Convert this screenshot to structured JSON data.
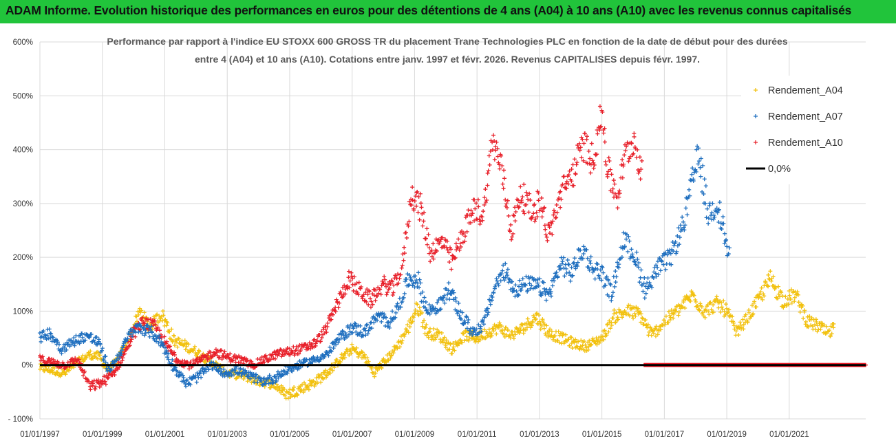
{
  "banner": {
    "text": "ADAM Informe. Evolution historique des performances en euros pour des détentions de 4 ans (A04) à 10 ans (A10) avec les revenus connus capitalisés"
  },
  "chart_data": {
    "type": "scatter",
    "title_line1": "Performance par rapport à l'indice EU STOXX 600 GROSS TR  du placement Trane Technologies PLC en fonction de la date de début pour des durées",
    "title_line2": "entre 4 (A04) et 10 ans (A10).  Cotations entre janv. 1997 et févr. 2026. Revenus CAPITALISES depuis févr. 1997.",
    "xlabel": "",
    "ylabel": "",
    "xlim": [
      1997.0,
      2023.45
    ],
    "ylim": [
      -100,
      600
    ],
    "y_ticks": [
      -100,
      0,
      100,
      200,
      300,
      400,
      500,
      600
    ],
    "y_tick_labels": [
      "- 100%",
      "0%",
      "100%",
      "200%",
      "300%",
      "400%",
      "500%",
      "600%"
    ],
    "x_ticks": [
      1997,
      1999,
      2001,
      2003,
      2005,
      2007,
      2009,
      2011,
      2013,
      2015,
      2017,
      2019,
      2021
    ],
    "x_tick_labels": [
      "01/01/1997",
      "01/01/1999",
      "01/01/2001",
      "01/01/2003",
      "01/01/2005",
      "01/01/2007",
      "01/01/2009",
      "01/01/2011",
      "01/01/2013",
      "01/01/2015",
      "01/01/2017",
      "01/01/2019",
      "01/01/2021"
    ],
    "grid": "vertical and horizontal",
    "legend_position": "top-right",
    "series": [
      {
        "name": "Rendement_A04",
        "color": "#f2c10f",
        "marker": "plus",
        "points": [
          [
            1997.0,
            -5
          ],
          [
            1997.4,
            -10
          ],
          [
            1997.8,
            -15
          ],
          [
            1998.2,
            5
          ],
          [
            1998.6,
            20
          ],
          [
            1998.9,
            15
          ],
          [
            1999.2,
            -10
          ],
          [
            1999.5,
            10
          ],
          [
            1999.9,
            55
          ],
          [
            2000.2,
            100
          ],
          [
            2000.5,
            70
          ],
          [
            2000.9,
            95
          ],
          [
            2001.3,
            45
          ],
          [
            2001.7,
            35
          ],
          [
            2002.0,
            25
          ],
          [
            2002.5,
            5
          ],
          [
            2003.0,
            -15
          ],
          [
            2003.5,
            -20
          ],
          [
            2004.0,
            -30
          ],
          [
            2004.5,
            -35
          ],
          [
            2004.9,
            -55
          ],
          [
            2005.3,
            -45
          ],
          [
            2005.7,
            -35
          ],
          [
            2006.2,
            -15
          ],
          [
            2006.6,
            10
          ],
          [
            2007.0,
            30
          ],
          [
            2007.4,
            15
          ],
          [
            2007.7,
            -15
          ],
          [
            2008.1,
            10
          ],
          [
            2008.5,
            40
          ],
          [
            2008.8,
            70
          ],
          [
            2009.1,
            110
          ],
          [
            2009.4,
            60
          ],
          [
            2009.8,
            55
          ],
          [
            2010.2,
            30
          ],
          [
            2010.6,
            55
          ],
          [
            2011.0,
            50
          ],
          [
            2011.3,
            60
          ],
          [
            2011.7,
            70
          ],
          [
            2012.1,
            55
          ],
          [
            2012.5,
            70
          ],
          [
            2012.9,
            90
          ],
          [
            2013.3,
            60
          ],
          [
            2013.7,
            50
          ],
          [
            2014.1,
            40
          ],
          [
            2014.5,
            35
          ],
          [
            2015.0,
            50
          ],
          [
            2015.4,
            90
          ],
          [
            2015.8,
            100
          ],
          [
            2016.2,
            95
          ],
          [
            2016.6,
            55
          ],
          [
            2017.0,
            80
          ],
          [
            2017.5,
            105
          ],
          [
            2017.9,
            130
          ],
          [
            2018.3,
            100
          ],
          [
            2018.7,
            115
          ],
          [
            2019.0,
            100
          ],
          [
            2019.3,
            60
          ],
          [
            2019.7,
            90
          ],
          [
            2020.1,
            130
          ],
          [
            2020.4,
            160
          ],
          [
            2020.8,
            120
          ],
          [
            2021.2,
            130
          ],
          [
            2021.6,
            80
          ],
          [
            2022.0,
            70
          ],
          [
            2022.3,
            55
          ],
          [
            2022.45,
            80
          ]
        ]
      },
      {
        "name": "Rendement_A07",
        "color": "#1f6fbf",
        "marker": "plus",
        "points": [
          [
            1997.0,
            50
          ],
          [
            1997.3,
            60
          ],
          [
            1997.7,
            30
          ],
          [
            1998.1,
            45
          ],
          [
            1998.5,
            55
          ],
          [
            1998.9,
            40
          ],
          [
            1999.2,
            -10
          ],
          [
            1999.5,
            15
          ],
          [
            1999.9,
            60
          ],
          [
            2000.2,
            70
          ],
          [
            2000.6,
            60
          ],
          [
            2000.9,
            40
          ],
          [
            2001.3,
            -5
          ],
          [
            2001.7,
            -35
          ],
          [
            2002.1,
            -20
          ],
          [
            2002.5,
            0
          ],
          [
            2002.9,
            -15
          ],
          [
            2003.3,
            -10
          ],
          [
            2003.7,
            -20
          ],
          [
            2004.1,
            -30
          ],
          [
            2004.5,
            -25
          ],
          [
            2004.9,
            -10
          ],
          [
            2005.3,
            0
          ],
          [
            2005.8,
            10
          ],
          [
            2006.2,
            20
          ],
          [
            2006.6,
            50
          ],
          [
            2007.0,
            70
          ],
          [
            2007.4,
            60
          ],
          [
            2007.8,
            90
          ],
          [
            2008.2,
            80
          ],
          [
            2008.5,
            110
          ],
          [
            2008.8,
            160
          ],
          [
            2009.1,
            160
          ],
          [
            2009.4,
            100
          ],
          [
            2009.8,
            110
          ],
          [
            2010.1,
            140
          ],
          [
            2010.5,
            90
          ],
          [
            2010.9,
            60
          ],
          [
            2011.2,
            75
          ],
          [
            2011.6,
            150
          ],
          [
            2011.9,
            175
          ],
          [
            2012.2,
            140
          ],
          [
            2012.6,
            150
          ],
          [
            2013.0,
            145
          ],
          [
            2013.3,
            130
          ],
          [
            2013.7,
            190
          ],
          [
            2014.0,
            170
          ],
          [
            2014.4,
            215
          ],
          [
            2014.7,
            180
          ],
          [
            2015.0,
            170
          ],
          [
            2015.3,
            130
          ],
          [
            2015.7,
            230
          ],
          [
            2016.0,
            210
          ],
          [
            2016.4,
            140
          ],
          [
            2016.8,
            180
          ],
          [
            2017.2,
            200
          ],
          [
            2017.6,
            260
          ],
          [
            2017.9,
            340
          ],
          [
            2018.1,
            390
          ],
          [
            2018.4,
            280
          ],
          [
            2018.7,
            300
          ],
          [
            2018.9,
            250
          ],
          [
            2019.1,
            190
          ]
        ]
      },
      {
        "name": "Rendement_A10",
        "color": "#e8202a",
        "marker": "plus",
        "points": [
          [
            1997.0,
            10
          ],
          [
            1997.4,
            5
          ],
          [
            1997.8,
            0
          ],
          [
            1998.2,
            10
          ],
          [
            1998.6,
            -40
          ],
          [
            1998.9,
            -35
          ],
          [
            1999.3,
            -20
          ],
          [
            1999.7,
            20
          ],
          [
            2000.0,
            60
          ],
          [
            2000.3,
            80
          ],
          [
            2000.7,
            70
          ],
          [
            2001.0,
            40
          ],
          [
            2001.4,
            10
          ],
          [
            2001.8,
            0
          ],
          [
            2002.2,
            10
          ],
          [
            2002.6,
            25
          ],
          [
            2003.0,
            15
          ],
          [
            2003.4,
            10
          ],
          [
            2003.8,
            0
          ],
          [
            2004.2,
            10
          ],
          [
            2004.6,
            20
          ],
          [
            2005.0,
            25
          ],
          [
            2005.4,
            30
          ],
          [
            2005.8,
            40
          ],
          [
            2006.1,
            60
          ],
          [
            2006.5,
            110
          ],
          [
            2006.9,
            160
          ],
          [
            2007.2,
            140
          ],
          [
            2007.6,
            120
          ],
          [
            2008.0,
            150
          ],
          [
            2008.3,
            140
          ],
          [
            2008.6,
            180
          ],
          [
            2008.9,
            320
          ],
          [
            2009.2,
            290
          ],
          [
            2009.5,
            210
          ],
          [
            2009.9,
            230
          ],
          [
            2010.2,
            190
          ],
          [
            2010.6,
            250
          ],
          [
            2010.9,
            290
          ],
          [
            2011.2,
            280
          ],
          [
            2011.5,
            420
          ],
          [
            2011.8,
            360
          ],
          [
            2012.1,
            250
          ],
          [
            2012.4,
            320
          ],
          [
            2012.8,
            280
          ],
          [
            2013.0,
            310
          ],
          [
            2013.3,
            240
          ],
          [
            2013.7,
            320
          ],
          [
            2014.1,
            360
          ],
          [
            2014.4,
            410
          ],
          [
            2014.7,
            380
          ],
          [
            2015.0,
            470
          ],
          [
            2015.2,
            360
          ],
          [
            2015.5,
            310
          ],
          [
            2015.7,
            380
          ],
          [
            2016.0,
            420
          ],
          [
            2016.3,
            360
          ]
        ]
      },
      {
        "name": "0,0%",
        "color": "#000000",
        "type": "line",
        "points": [
          [
            1997.0,
            0
          ],
          [
            2023.45,
            0
          ]
        ]
      }
    ],
    "annotations": [
      "A10 values shown at 0% from 2016 to 2023 (no data)"
    ]
  }
}
